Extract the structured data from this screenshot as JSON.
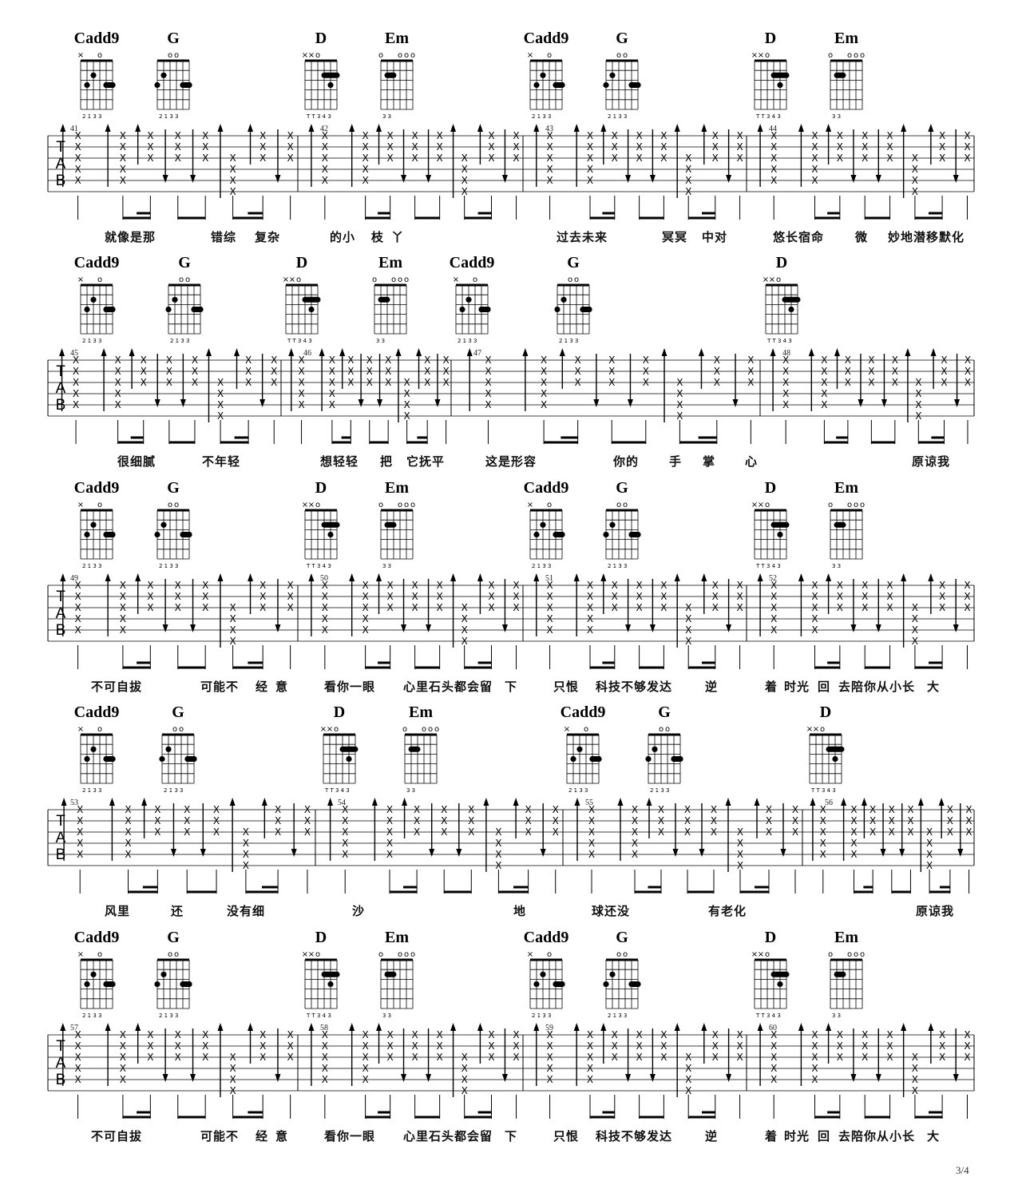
{
  "page_number": "3/4",
  "chord_shapes": {
    "Cadd9": {
      "markers": [
        "×",
        "",
        "",
        "o",
        "",
        ""
      ],
      "frets": [
        -1,
        3,
        2,
        0,
        3,
        3
      ],
      "fingers": "2 1   3 3",
      "barre": null
    },
    "G": {
      "markers": [
        "",
        "",
        "o",
        "o",
        "",
        ""
      ],
      "frets": [
        3,
        2,
        0,
        0,
        3,
        3
      ],
      "fingers": "2 1   3 3",
      "barre": null
    },
    "D": {
      "markers": [
        "×",
        "×",
        "o",
        "",
        "",
        ""
      ],
      "frets": [
        -1,
        -1,
        0,
        2,
        3,
        2
      ],
      "fingers": "T T  3 4 3",
      "barre": [
        2,
        4,
        6
      ]
    },
    "Em": {
      "markers": [
        "o",
        "",
        "",
        "o",
        "o",
        "o"
      ],
      "frets": [
        0,
        2,
        2,
        0,
        0,
        0
      ],
      "fingers": "3 3",
      "barre": [
        2,
        2,
        3
      ]
    }
  },
  "tab_clef": [
    "T",
    "A",
    "B"
  ],
  "systems": [
    {
      "chords": [
        "Cadd9",
        "G",
        "D",
        "Em",
        "Cadd9",
        "G",
        "D",
        "Em"
      ],
      "measures": [
        "41",
        "42",
        "43",
        "44"
      ],
      "lyrics": [
        "就像是那",
        "错综",
        "复杂",
        "的小",
        "枝",
        "丫",
        "过去未来",
        "冥冥",
        "中对",
        "悠长宿命",
        "微",
        "妙地潜移默化"
      ]
    },
    {
      "chords": [
        "Cadd9",
        "G",
        "D",
        "Em",
        "Cadd9",
        "G",
        "D"
      ],
      "measures": [
        "45",
        "46",
        "47",
        "48"
      ],
      "lyrics": [
        "很细腻",
        "不年轻",
        "想轻轻",
        "把",
        "它抚平",
        "这是形容",
        "你的",
        "手",
        "掌",
        "心",
        "原谅我"
      ]
    },
    {
      "chords": [
        "Cadd9",
        "G",
        "D",
        "Em",
        "Cadd9",
        "G",
        "D",
        "Em"
      ],
      "measures": [
        "49",
        "50",
        "51",
        "52"
      ],
      "lyrics": [
        "不可自拔",
        "可能不",
        "经",
        "意",
        "看你一眼",
        "心里石头都会留",
        "下",
        "只恨",
        "科技不够发达",
        "逆",
        "着",
        "时光",
        "回",
        "去陪你从小长",
        "大"
      ]
    },
    {
      "chords": [
        "Cadd9",
        "G",
        "D",
        "Em",
        "Cadd9",
        "G",
        "D"
      ],
      "measures": [
        "53",
        "54",
        "55",
        "56"
      ],
      "lyrics": [
        "风里",
        "还",
        "没有细",
        "沙",
        "地",
        "球还没",
        "有老化",
        "原谅我"
      ]
    },
    {
      "chords": [
        "Cadd9",
        "G",
        "D",
        "Em",
        "Cadd9",
        "G",
        "D",
        "Em"
      ],
      "measures": [
        "57",
        "58",
        "59",
        "60"
      ],
      "lyrics": [
        "不可自拔",
        "可能不",
        "经",
        "意",
        "看你一眼",
        "心里石头都会留",
        "下",
        "只恨",
        "科技不够发达",
        "逆",
        "着",
        "时光",
        "回",
        "去陪你从小长",
        "大"
      ]
    }
  ]
}
